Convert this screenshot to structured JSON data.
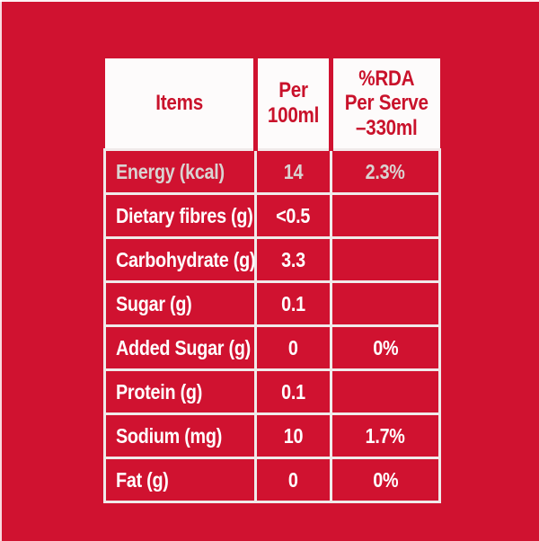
{
  "colors": {
    "brand_red": "#d01230",
    "header_text_red": "#c9122b",
    "grid_white": "#f0eaea",
    "cell_text_white": "#ffffff"
  },
  "table": {
    "header": {
      "items": "Items",
      "per_100ml": [
        "Per",
        "100ml"
      ],
      "rda": [
        "%RDA",
        "Per Serve",
        "–330ml"
      ]
    },
    "rows": [
      {
        "item": "Energy (kcal)",
        "per100": "14",
        "rda": "2.3%"
      },
      {
        "item": "Dietary fibres (g)",
        "per100": "<0.5",
        "rda": ""
      },
      {
        "item": "Carbohydrate (g)",
        "per100": "3.3",
        "rda": ""
      },
      {
        "item": "Sugar (g)",
        "per100": "0.1",
        "rda": ""
      },
      {
        "item": "Added Sugar (g)",
        "per100": "0",
        "rda": "0%"
      },
      {
        "item": "Protein (g)",
        "per100": "0.1",
        "rda": ""
      },
      {
        "item": "Sodium (mg)",
        "per100": "10",
        "rda": "1.7%"
      },
      {
        "item": "Fat (g)",
        "per100": "0",
        "rda": "0%"
      }
    ]
  }
}
